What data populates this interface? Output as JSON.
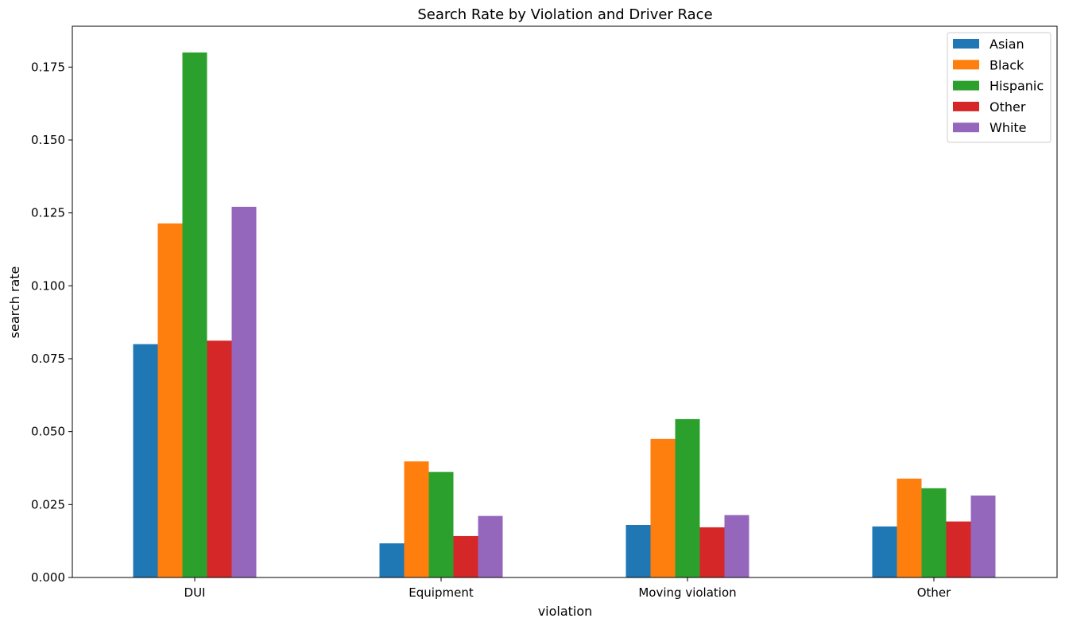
{
  "chart_data": {
    "type": "bar",
    "title": "Search Rate by Violation and Driver Race",
    "xlabel": "violation",
    "ylabel": "search rate",
    "categories": [
      "DUI",
      "Equipment",
      "Moving violation",
      "Other"
    ],
    "ylim": [
      0,
      0.189
    ],
    "yticks": [
      "0.000",
      "0.025",
      "0.050",
      "0.075",
      "0.100",
      "0.125",
      "0.150",
      "0.175"
    ],
    "legend_position": "top-right",
    "grid": false,
    "series": [
      {
        "name": "Asian",
        "color": "#1f77b4",
        "values": [
          0.08,
          0.0117,
          0.018,
          0.0175
        ]
      },
      {
        "name": "Black",
        "color": "#ff7f0e",
        "values": [
          0.1214,
          0.0398,
          0.0475,
          0.0339
        ]
      },
      {
        "name": "Hispanic",
        "color": "#2ca02c",
        "values": [
          0.18,
          0.0362,
          0.0543,
          0.0306
        ]
      },
      {
        "name": "Other",
        "color": "#d62728",
        "values": [
          0.0812,
          0.0142,
          0.0172,
          0.0192
        ]
      },
      {
        "name": "White",
        "color": "#9467bd",
        "values": [
          0.1271,
          0.0211,
          0.0214,
          0.0281
        ]
      }
    ]
  }
}
